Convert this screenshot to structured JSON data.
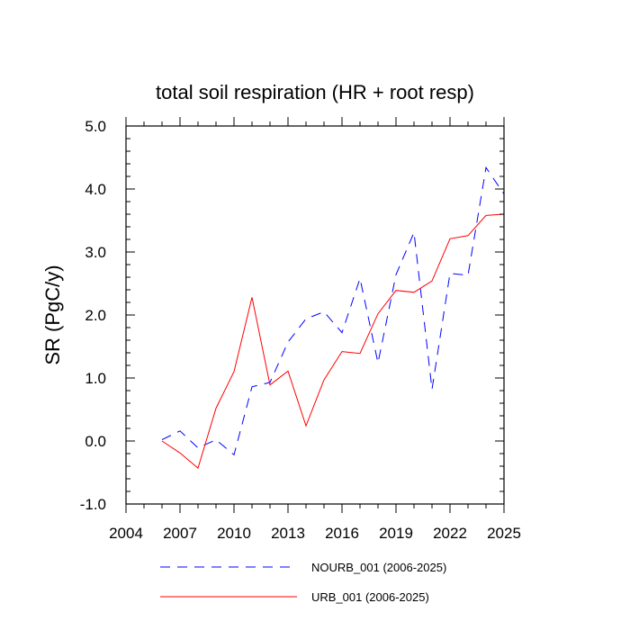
{
  "chart_data": {
    "type": "line",
    "title": "total soil respiration (HR + root resp)",
    "xlabel": "",
    "ylabel": "SR  (PgC/y)",
    "xlim": [
      2004,
      2025
    ],
    "ylim": [
      -1.0,
      5.0
    ],
    "xticks": [
      2004,
      2007,
      2010,
      2013,
      2016,
      2019,
      2022,
      2025
    ],
    "xtick_labels": [
      "2004",
      "2007",
      "2010",
      "2013",
      "2016",
      "2019",
      "2022",
      "2025"
    ],
    "yticks": [
      -1.0,
      0.0,
      1.0,
      2.0,
      3.0,
      4.0,
      5.0
    ],
    "ytick_labels": [
      "-1.0",
      "0.0",
      "1.0",
      "2.0",
      "3.0",
      "4.0",
      "5.0"
    ],
    "legend_position": "bottom",
    "series": [
      {
        "name": "NOURB_001 (2006-2025)",
        "color": "#0000ff",
        "dash": "dashed",
        "x": [
          2006,
          2007,
          2008,
          2009,
          2010,
          2011,
          2012,
          2013,
          2014,
          2015,
          2016,
          2017,
          2018,
          2019,
          2020,
          2021,
          2022,
          2023,
          2024,
          2025
        ],
        "values": [
          0.02,
          0.16,
          -0.11,
          0.02,
          -0.22,
          0.86,
          0.93,
          1.57,
          1.94,
          2.05,
          1.72,
          2.58,
          1.24,
          2.64,
          3.31,
          0.82,
          2.66,
          2.63,
          4.34,
          3.92
        ]
      },
      {
        "name": "URB_001 (2006-2025)",
        "color": "#ff0000",
        "dash": "solid",
        "x": [
          2006,
          2007,
          2008,
          2009,
          2010,
          2011,
          2012,
          2013,
          2014,
          2015,
          2016,
          2017,
          2018,
          2019,
          2020,
          2021,
          2022,
          2023,
          2024,
          2025
        ],
        "values": [
          0.0,
          -0.19,
          -0.43,
          0.52,
          1.1,
          2.28,
          0.89,
          1.11,
          0.24,
          0.97,
          1.42,
          1.39,
          2.02,
          2.39,
          2.36,
          2.54,
          3.21,
          3.26,
          3.58,
          3.6
        ]
      }
    ]
  }
}
